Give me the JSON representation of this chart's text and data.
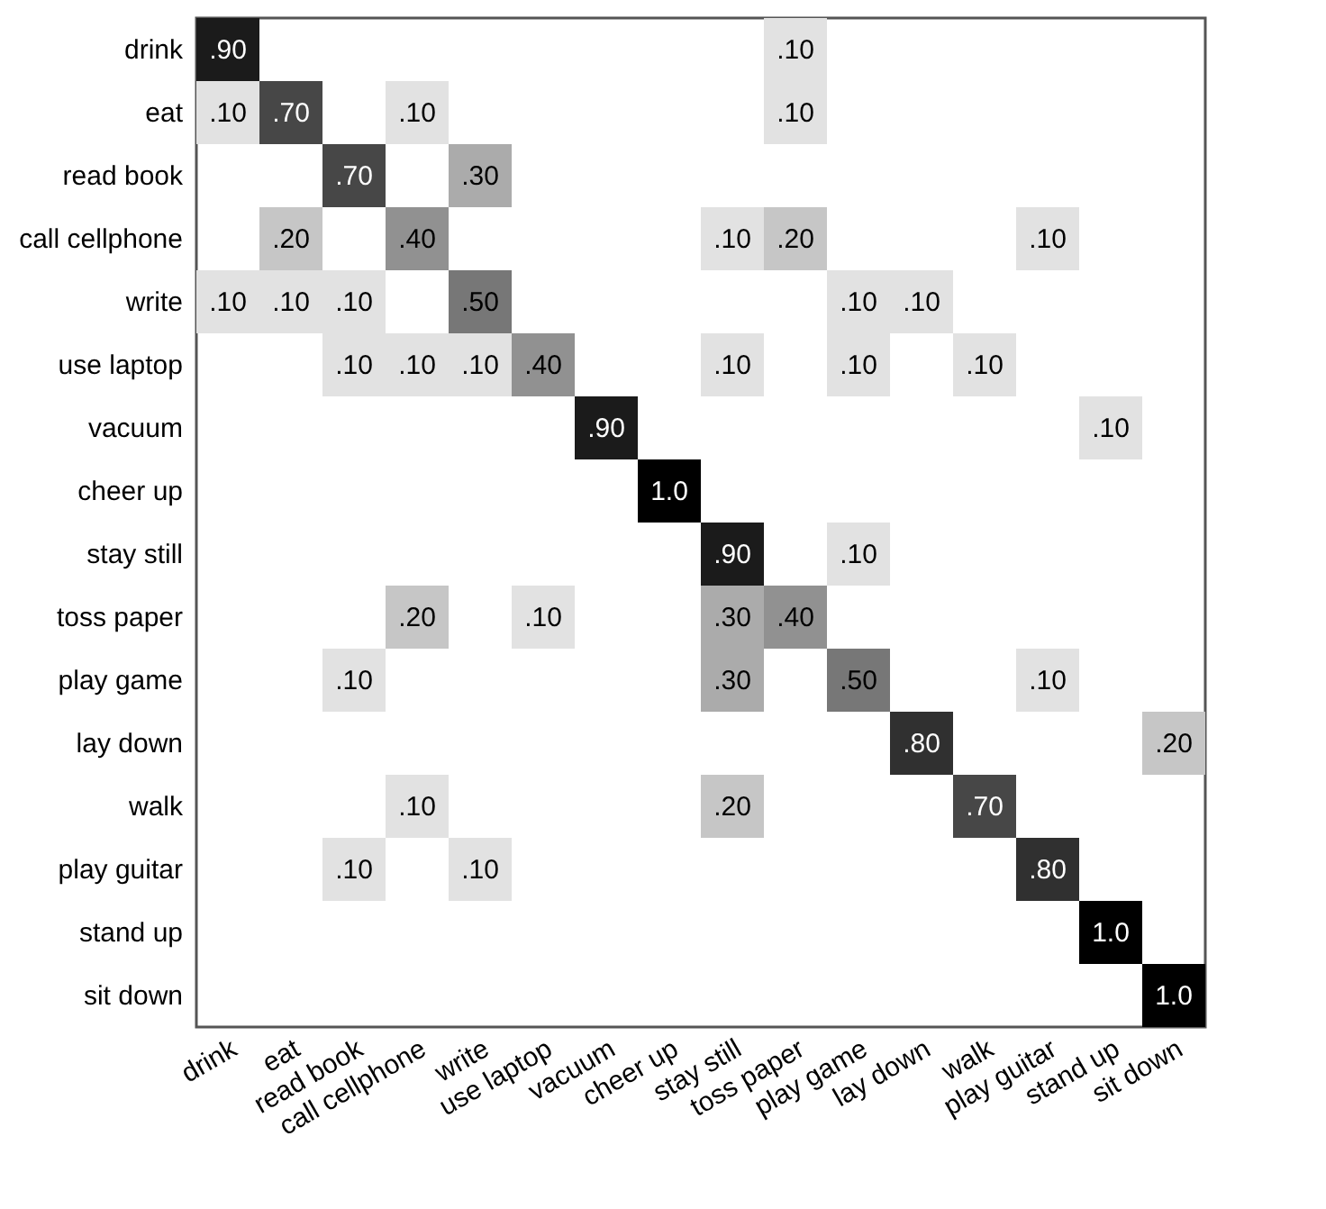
{
  "chart_data": {
    "type": "heatmap",
    "categories": [
      "drink",
      "eat",
      "read book",
      "call cellphone",
      "write",
      "use laptop",
      "vacuum",
      "cheer up",
      "stay still",
      "toss paper",
      "play game",
      "lay down",
      "walk",
      "play guitar",
      "stand up",
      "sit down"
    ],
    "y_categories": [
      "drink",
      "eat",
      "read book",
      "call cellphone",
      "write",
      "use laptop",
      "vacuum",
      "cheer up",
      "stay still",
      "toss paper",
      "play game",
      "lay down",
      "walk",
      "play guitar",
      "stand up",
      "sit down"
    ],
    "cells": [
      [
        0.9,
        null,
        null,
        null,
        null,
        null,
        null,
        null,
        null,
        0.1,
        null,
        null,
        null,
        null,
        null,
        null
      ],
      [
        0.1,
        0.7,
        null,
        0.1,
        null,
        null,
        null,
        null,
        null,
        0.1,
        null,
        null,
        null,
        null,
        null,
        null
      ],
      [
        null,
        null,
        0.7,
        null,
        0.3,
        null,
        null,
        null,
        null,
        null,
        null,
        null,
        null,
        null,
        null,
        null
      ],
      [
        null,
        0.2,
        null,
        0.4,
        null,
        null,
        null,
        null,
        0.1,
        0.2,
        null,
        null,
        null,
        0.1,
        null,
        null
      ],
      [
        0.1,
        0.1,
        0.1,
        null,
        0.5,
        null,
        null,
        null,
        null,
        null,
        0.1,
        0.1,
        null,
        null,
        null,
        null
      ],
      [
        null,
        null,
        0.1,
        0.1,
        0.1,
        0.4,
        null,
        null,
        0.1,
        null,
        0.1,
        null,
        0.1,
        null,
        null,
        null
      ],
      [
        null,
        null,
        null,
        null,
        null,
        null,
        0.9,
        null,
        null,
        null,
        null,
        null,
        null,
        null,
        0.1,
        null
      ],
      [
        null,
        null,
        null,
        null,
        null,
        null,
        null,
        1.0,
        null,
        null,
        null,
        null,
        null,
        null,
        null,
        null
      ],
      [
        null,
        null,
        null,
        null,
        null,
        null,
        null,
        null,
        0.9,
        null,
        0.1,
        null,
        null,
        null,
        null,
        null
      ],
      [
        null,
        null,
        null,
        0.2,
        null,
        0.1,
        null,
        null,
        0.3,
        0.4,
        null,
        null,
        null,
        null,
        null,
        null
      ],
      [
        null,
        null,
        0.1,
        null,
        null,
        null,
        null,
        null,
        0.3,
        null,
        0.5,
        null,
        null,
        0.1,
        null,
        null
      ],
      [
        null,
        null,
        null,
        null,
        null,
        null,
        null,
        null,
        null,
        null,
        null,
        0.8,
        null,
        null,
        null,
        0.2
      ],
      [
        null,
        null,
        null,
        0.1,
        null,
        null,
        null,
        null,
        0.2,
        null,
        null,
        null,
        0.7,
        null,
        null,
        null
      ],
      [
        null,
        null,
        0.1,
        null,
        0.1,
        null,
        null,
        null,
        null,
        null,
        null,
        null,
        null,
        0.8,
        null,
        null
      ],
      [
        null,
        null,
        null,
        null,
        null,
        null,
        null,
        null,
        null,
        null,
        null,
        null,
        null,
        null,
        1.0,
        null
      ],
      [
        null,
        null,
        null,
        null,
        null,
        null,
        null,
        null,
        null,
        null,
        null,
        null,
        null,
        null,
        null,
        1.0
      ]
    ],
    "cell_labels": [
      [
        ".90",
        null,
        null,
        null,
        null,
        null,
        null,
        null,
        null,
        ".10",
        null,
        null,
        null,
        null,
        null,
        null
      ],
      [
        ".10",
        ".70",
        null,
        ".10",
        null,
        null,
        null,
        null,
        null,
        ".10",
        null,
        null,
        null,
        null,
        null,
        null
      ],
      [
        null,
        null,
        ".70",
        null,
        ".30",
        null,
        null,
        null,
        null,
        null,
        null,
        null,
        null,
        null,
        null,
        null
      ],
      [
        null,
        ".20",
        null,
        ".40",
        null,
        null,
        null,
        null,
        ".10",
        ".20",
        null,
        null,
        null,
        ".10",
        null,
        null
      ],
      [
        ".10",
        ".10",
        ".10",
        null,
        ".50",
        null,
        null,
        null,
        null,
        null,
        ".10",
        ".10",
        null,
        null,
        null,
        null
      ],
      [
        null,
        null,
        ".10",
        ".10",
        ".10",
        ".40",
        null,
        null,
        ".10",
        null,
        ".10",
        null,
        ".10",
        null,
        null,
        null
      ],
      [
        null,
        null,
        null,
        null,
        null,
        null,
        ".90",
        null,
        null,
        null,
        null,
        null,
        null,
        null,
        ".10",
        null
      ],
      [
        null,
        null,
        null,
        null,
        null,
        null,
        null,
        "1.0",
        null,
        null,
        null,
        null,
        null,
        null,
        null,
        null
      ],
      [
        null,
        null,
        null,
        null,
        null,
        null,
        null,
        null,
        ".90",
        null,
        ".10",
        null,
        null,
        null,
        null,
        null
      ],
      [
        null,
        null,
        null,
        ".20",
        null,
        ".10",
        null,
        null,
        ".30",
        ".40",
        null,
        null,
        null,
        null,
        null,
        null
      ],
      [
        null,
        null,
        ".10",
        null,
        null,
        null,
        null,
        null,
        ".30",
        null,
        ".50",
        null,
        null,
        ".10",
        null,
        null
      ],
      [
        null,
        null,
        null,
        null,
        null,
        null,
        null,
        null,
        null,
        null,
        null,
        ".80",
        null,
        null,
        null,
        ".20"
      ],
      [
        null,
        null,
        null,
        ".10",
        null,
        null,
        null,
        null,
        ".20",
        null,
        null,
        null,
        ".70",
        null,
        null,
        null
      ],
      [
        null,
        null,
        ".10",
        null,
        ".10",
        null,
        null,
        null,
        null,
        null,
        null,
        null,
        null,
        ".80",
        null,
        null
      ],
      [
        null,
        null,
        null,
        null,
        null,
        null,
        null,
        null,
        null,
        null,
        null,
        null,
        null,
        null,
        "1.0",
        null
      ],
      [
        null,
        null,
        null,
        null,
        null,
        null,
        null,
        null,
        null,
        null,
        null,
        null,
        null,
        null,
        null,
        "1.0"
      ]
    ]
  }
}
